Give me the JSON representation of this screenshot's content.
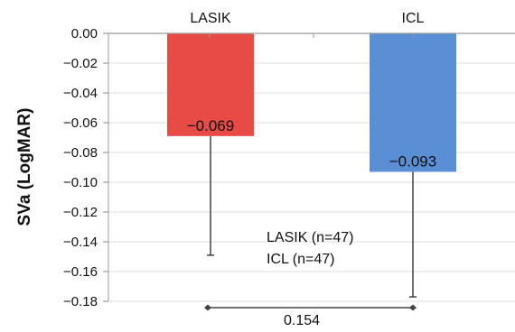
{
  "chart_data": {
    "type": "bar",
    "categories": [
      "LASIK",
      "ICL"
    ],
    "values": [
      -0.069,
      -0.093
    ],
    "value_labels": [
      "−0.069",
      "−0.093"
    ],
    "error_low": [
      -0.149,
      -0.177
    ],
    "colors": [
      "#e84b45",
      "#5a8fd6"
    ],
    "ylabel": "SVa (LogMAR)",
    "ylim": [
      -0.18,
      0.0
    ],
    "yticks": [
      0.0,
      -0.02,
      -0.04,
      -0.06,
      -0.08,
      -0.1,
      -0.12,
      -0.14,
      -0.16,
      -0.18
    ],
    "ytick_labels": [
      "0.00",
      "−0.02",
      "−0.04",
      "−0.06",
      "−0.08",
      "−0.10",
      "−0.12",
      "−0.14",
      "−0.16",
      "−0.18"
    ],
    "grid": true,
    "legend_lines": [
      "LASIK (n=47)",
      "ICL (n=47)"
    ],
    "comparison_label": "0.154"
  }
}
